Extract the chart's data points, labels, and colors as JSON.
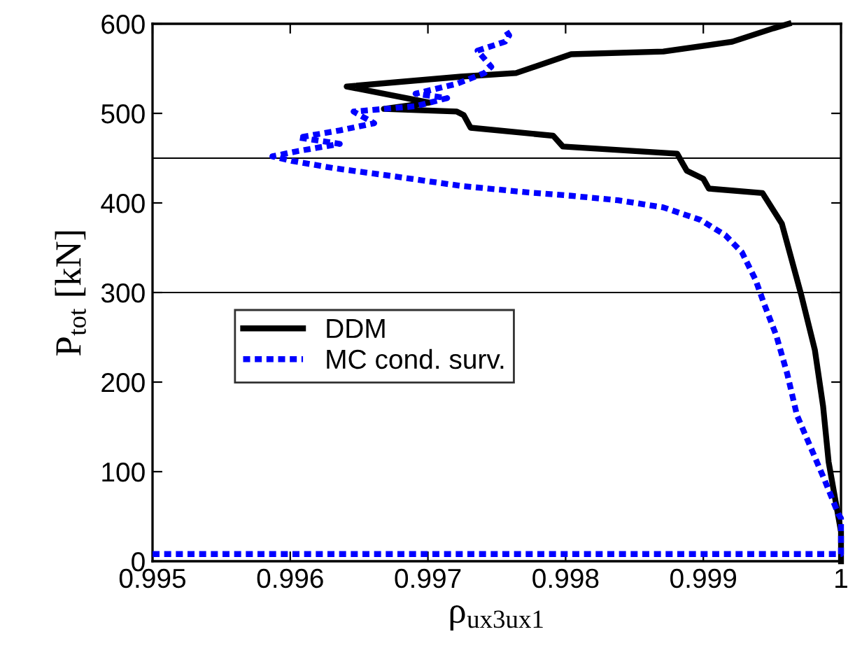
{
  "chart_data": {
    "type": "line",
    "xlabel": "ρ$_{ux3ux1}$",
    "ylabel": "P$_{tot}$ [kN]",
    "xlim": [
      0.995,
      1.0
    ],
    "ylim": [
      0,
      600
    ],
    "xticks": [
      0.995,
      0.996,
      0.997,
      0.998,
      0.999,
      {
        "value": 1.0,
        "label": "1"
      }
    ],
    "yticks": [
      0,
      100,
      200,
      300,
      400,
      500,
      600
    ],
    "grid": false,
    "legend": "left",
    "marker": "none",
    "ref_lines": [
      {
        "axis": "y",
        "value": 450,
        "color": "#000000",
        "line_style": "solid"
      },
      {
        "axis": "y",
        "value": 300,
        "color": "#000000",
        "line_style": "solid"
      }
    ],
    "series": [
      {
        "name": "DDM",
        "color": "#000000",
        "line_style": "solid",
        "x": [
          1.0,
          1.0,
          0.99991,
          0.99987,
          0.99981,
          0.99971,
          0.99957,
          0.99943,
          0.99904,
          0.999,
          0.99888,
          0.99885,
          0.99881,
          0.99871,
          0.99798,
          0.99791,
          0.99731,
          0.99726,
          0.99721,
          0.99668,
          0.99701,
          0.99641,
          0.99724,
          0.99764,
          0.99804,
          0.99871,
          0.99921,
          0.99951,
          0.99962
        ],
        "values": [
          0,
          33,
          111,
          173,
          236,
          298,
          377,
          411,
          416,
          427,
          436,
          444,
          455,
          456,
          463,
          475,
          484,
          498,
          502,
          505,
          512,
          530,
          541,
          545,
          566,
          569,
          580,
          595,
          600
        ]
      },
      {
        "name": "MC cond. surv.",
        "color": "#0000ff",
        "line_style": "dotted",
        "x": [
          0.995,
          1.0,
          1.0,
          0.99998,
          0.99988,
          0.99978,
          0.99968,
          0.99961,
          0.99953,
          0.99944,
          0.99938,
          0.99928,
          0.99916,
          0.99898,
          0.99871,
          0.99838,
          0.99804,
          0.99771,
          0.99724,
          0.99674,
          0.99631,
          0.99601,
          0.99587,
          0.99606,
          0.99636,
          0.99606,
          0.99636,
          0.99661,
          0.99646,
          0.99691,
          0.99714,
          0.99691,
          0.99721,
          0.99741,
          0.99746,
          0.99736,
          0.99756,
          0.99759,
          0.99756
        ],
        "values": [
          8,
          8,
          48,
          53,
          91,
          127,
          163,
          209,
          252,
          288,
          314,
          345,
          364,
          381,
          395,
          403,
          408,
          412,
          419,
          430,
          439,
          447,
          452,
          458,
          466,
          473,
          481,
          489,
          502,
          508,
          517,
          522,
          533,
          545,
          552,
          570,
          580,
          587,
          594
        ]
      }
    ]
  }
}
